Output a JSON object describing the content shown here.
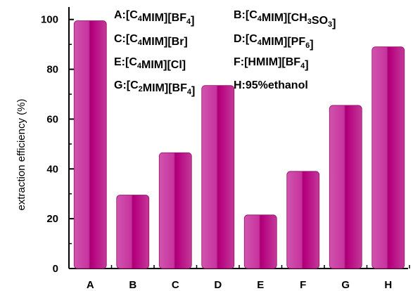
{
  "chart_data": {
    "type": "bar",
    "categories": [
      "A",
      "B",
      "C",
      "D",
      "E",
      "F",
      "G",
      "H"
    ],
    "values": [
      99.5,
      29.5,
      46.5,
      73.5,
      21.5,
      39,
      65.5,
      89
    ],
    "ylabel": "extraction efficiency (%)",
    "xlabel": "",
    "ylim": [
      0,
      105
    ],
    "yticks": [
      0,
      20,
      40,
      60,
      80,
      100
    ],
    "bar_color": "#c8339f",
    "bar_highlight": "#b6007f",
    "grid": false,
    "legend": [
      {
        "key": "A",
        "parts": [
          [
            "A:[C",
            ""
          ],
          [
            "4",
            "sub"
          ],
          [
            "MIM][BF",
            ""
          ],
          [
            "4",
            "sub"
          ],
          [
            "]",
            ""
          ]
        ]
      },
      {
        "key": "B",
        "parts": [
          [
            "B:[C",
            ""
          ],
          [
            "4",
            "sub"
          ],
          [
            "MIM][CH",
            ""
          ],
          [
            "3",
            "sub"
          ],
          [
            "SO",
            ""
          ],
          [
            "3",
            "sub"
          ],
          [
            "]",
            ""
          ]
        ]
      },
      {
        "key": "C",
        "parts": [
          [
            "C:[C",
            ""
          ],
          [
            "4",
            "sub"
          ],
          [
            "MIM][Br]",
            ""
          ]
        ]
      },
      {
        "key": "D",
        "parts": [
          [
            "D:[C",
            ""
          ],
          [
            "4",
            "sub"
          ],
          [
            "MIM][PF",
            ""
          ],
          [
            "6",
            "sub"
          ],
          [
            "]",
            ""
          ]
        ]
      },
      {
        "key": "E",
        "parts": [
          [
            "E:[C",
            ""
          ],
          [
            "4",
            "sub"
          ],
          [
            "MIM][Cl]",
            ""
          ]
        ]
      },
      {
        "key": "F",
        "parts": [
          [
            "F:[HMIM][BF",
            ""
          ],
          [
            "4",
            "sub"
          ],
          [
            "]",
            ""
          ]
        ]
      },
      {
        "key": "G",
        "parts": [
          [
            "G:[C",
            ""
          ],
          [
            "2",
            "sub"
          ],
          [
            "MIM][BF",
            ""
          ],
          [
            "4",
            "sub"
          ],
          [
            "]",
            ""
          ]
        ]
      },
      {
        "key": "H",
        "parts": [
          [
            "H:95%ethanol",
            ""
          ]
        ]
      }
    ]
  }
}
